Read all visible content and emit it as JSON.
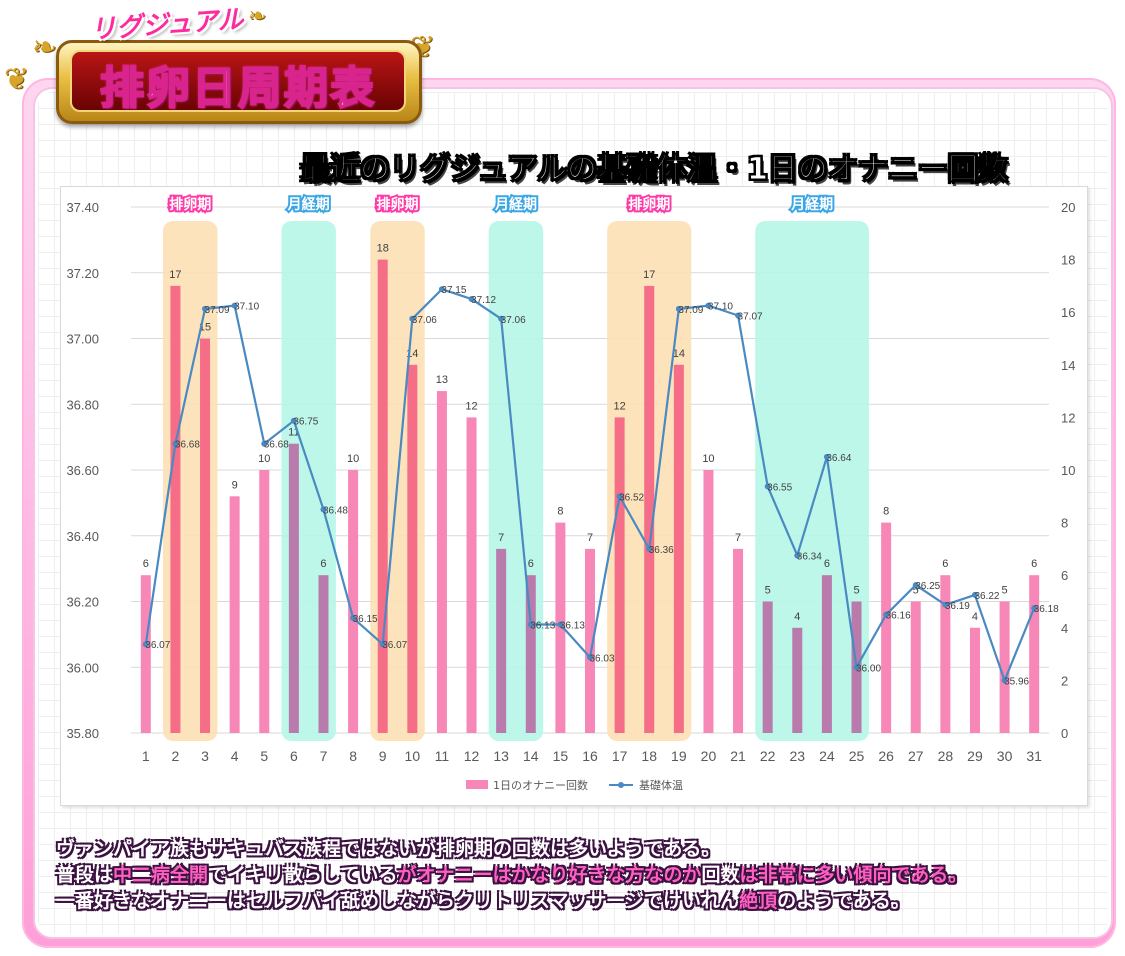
{
  "banner": {
    "subtitle": "リグジュアル",
    "title": "排卵日周期表"
  },
  "chart_title": "最近のリグジュアルの基礎体温・1日のオナニー回数",
  "notes": [
    [
      {
        "text": "ヴァンパイア族もサキュバス族程ではないが排卵期の回数は多いようである。",
        "hl": false
      }
    ],
    [
      {
        "text": "普段は",
        "hl": false
      },
      {
        "text": "中二病全開",
        "hl": true
      },
      {
        "text": "でイキリ散らしている",
        "hl": false
      },
      {
        "text": "がオナニーはかなり好きな方なのか",
        "hl": true
      },
      {
        "text": "回数",
        "hl": false
      },
      {
        "text": "は非常に多い傾向である。",
        "hl": true
      }
    ],
    [
      {
        "text": "一番好きなオナニーはセルフパイ舐めしながらクリトリスマッサージでけいれん",
        "hl": false
      },
      {
        "text": "絶頂",
        "hl": true
      },
      {
        "text": "のようである。",
        "hl": false
      }
    ]
  ],
  "colors": {
    "bar": "#f787b6",
    "bar_ovulation": "#f56d87",
    "bar_menses": "#b97bab",
    "line": "#4a8ac2",
    "ovulation_band": "#fde0b4",
    "menses_band": "#b6f6e7",
    "ovulation_label": "#ff3aa8",
    "menses_label": "#3aa6e6"
  },
  "chart_data": {
    "type": "bar+line",
    "categories": [
      "1",
      "2",
      "3",
      "4",
      "5",
      "6",
      "7",
      "8",
      "9",
      "10",
      "11",
      "12",
      "13",
      "14",
      "15",
      "16",
      "17",
      "18",
      "19",
      "20",
      "21",
      "22",
      "23",
      "24",
      "25",
      "26",
      "27",
      "28",
      "29",
      "30",
      "31"
    ],
    "series": [
      {
        "name": "1日のオナニー回数",
        "type": "bar",
        "axis": "right",
        "values": [
          6,
          17,
          15,
          9,
          10,
          11,
          6,
          10,
          18,
          14,
          13,
          12,
          7,
          6,
          8,
          7,
          12,
          17,
          14,
          10,
          7,
          5,
          4,
          6,
          5,
          8,
          5,
          6,
          4,
          5,
          6
        ]
      },
      {
        "name": "基礎体温",
        "type": "line",
        "axis": "left",
        "values": [
          36.07,
          36.68,
          37.09,
          37.1,
          36.68,
          36.75,
          36.48,
          36.15,
          36.07,
          37.06,
          37.15,
          37.12,
          37.06,
          36.13,
          36.13,
          36.03,
          36.52,
          36.36,
          37.09,
          37.1,
          37.07,
          36.55,
          36.34,
          36.64,
          36.0,
          36.16,
          36.25,
          36.19,
          36.22,
          35.96,
          36.18
        ]
      }
    ],
    "left_axis": {
      "min": 35.8,
      "max": 37.4,
      "step": 0.2,
      "ticks": [
        "35.80",
        "36.00",
        "36.20",
        "36.40",
        "36.60",
        "36.80",
        "37.00",
        "37.20",
        "37.40"
      ]
    },
    "right_axis": {
      "min": 0,
      "max": 20,
      "step": 2,
      "ticks": [
        "0",
        "2",
        "4",
        "6",
        "8",
        "10",
        "12",
        "14",
        "16",
        "18",
        "20"
      ]
    },
    "bar_labels": [
      "6",
      "17",
      "15",
      "9",
      "10",
      "11",
      "6",
      "10",
      "18",
      "14",
      "13",
      "12",
      "7",
      "6",
      "8",
      "7",
      "12",
      "17",
      "14",
      "10",
      "7",
      "5",
      "4",
      "6",
      "5",
      "8",
      "5",
      "6",
      "4",
      "5",
      "6"
    ],
    "line_labels": [
      "36.07",
      "36.68",
      "37.09",
      "37.10",
      "36.68",
      "36.75",
      "36.48",
      "36.15",
      "36.07",
      "37.06",
      "37.15",
      "37.12",
      "37.06",
      "36.13",
      "36.13",
      "36.03",
      "36.52",
      "36.36",
      "37.09",
      "37.10",
      "37.07",
      "36.55",
      "36.34",
      "36.64",
      "36.00",
      "36.16",
      "36.25",
      "36.19",
      "36.22",
      "35.96",
      "36.18"
    ],
    "phases": [
      {
        "label": "排卵期",
        "kind": "ovulation",
        "start": 2,
        "end": 3
      },
      {
        "label": "月経期",
        "kind": "menses",
        "start": 6,
        "end": 7
      },
      {
        "label": "排卵期",
        "kind": "ovulation",
        "start": 9,
        "end": 10
      },
      {
        "label": "月経期",
        "kind": "menses",
        "start": 13,
        "end": 14
      },
      {
        "label": "排卵期",
        "kind": "ovulation",
        "start": 17,
        "end": 19
      },
      {
        "label": "月経期",
        "kind": "menses",
        "start": 22,
        "end": 25
      }
    ],
    "legend": {
      "placement": "bottom",
      "items": [
        "1日のオナニー回数",
        "基礎体温"
      ]
    },
    "grid": true
  }
}
